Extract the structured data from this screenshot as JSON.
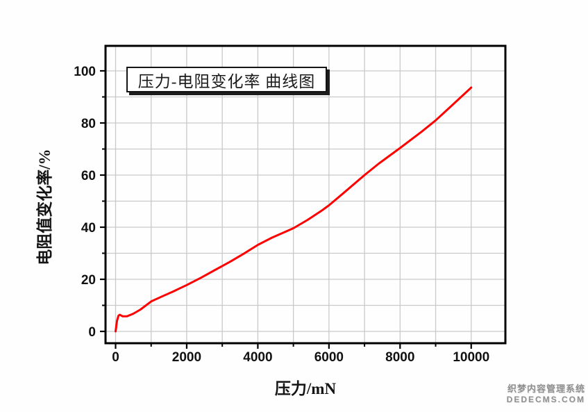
{
  "page": {
    "background": "#ffffff"
  },
  "chart_data": {
    "type": "line",
    "title": "压力-电阻变化率 曲线图",
    "xlabel": "压力/mN",
    "ylabel": "电阻值变化率/%",
    "xlim": [
      -300,
      11000
    ],
    "ylim": [
      -5,
      110
    ],
    "grid": true,
    "legend_position": "none",
    "x_ticks_major": [
      0,
      2000,
      4000,
      6000,
      8000,
      10000
    ],
    "x_tick_labels": [
      "0",
      "2000",
      "4000",
      "6000",
      "8000",
      "10000"
    ],
    "x_ticks_minor": [
      1000,
      3000,
      5000,
      7000,
      9000
    ],
    "y_ticks_major": [
      0,
      20,
      40,
      60,
      80,
      100
    ],
    "y_tick_labels": [
      "0",
      "20",
      "40",
      "60",
      "80",
      "100"
    ],
    "y_ticks_minor": [
      10,
      30,
      50,
      70,
      90
    ],
    "colors": {
      "line": "#fe0000",
      "grid": "#c9c9c9",
      "frame": "#000000",
      "tick": "#000000"
    },
    "series": [
      {
        "name": "压力-电阻变化率",
        "color": "#fe0000",
        "points": [
          [
            0,
            0
          ],
          [
            40,
            4.0
          ],
          [
            80,
            6.0
          ],
          [
            120,
            6.4
          ],
          [
            200,
            5.8
          ],
          [
            320,
            5.8
          ],
          [
            500,
            6.8
          ],
          [
            700,
            8.4
          ],
          [
            1000,
            11.5
          ],
          [
            1300,
            13.4
          ],
          [
            1600,
            15.2
          ],
          [
            2000,
            17.8
          ],
          [
            2400,
            20.6
          ],
          [
            2800,
            23.6
          ],
          [
            3200,
            26.6
          ],
          [
            3600,
            29.8
          ],
          [
            4000,
            33.2
          ],
          [
            4400,
            36.0
          ],
          [
            4800,
            38.4
          ],
          [
            5000,
            39.6
          ],
          [
            5400,
            42.8
          ],
          [
            5800,
            46.4
          ],
          [
            6000,
            48.4
          ],
          [
            6400,
            53.0
          ],
          [
            7000,
            60.0
          ],
          [
            7400,
            64.4
          ],
          [
            8000,
            70.4
          ],
          [
            8600,
            76.6
          ],
          [
            9000,
            81.0
          ],
          [
            9400,
            86.0
          ],
          [
            10000,
            93.6
          ]
        ]
      }
    ]
  },
  "watermark": {
    "line1": "织梦内容管理系统",
    "line2": "DEDECMS.COM",
    "color": "#8f8f8f"
  }
}
